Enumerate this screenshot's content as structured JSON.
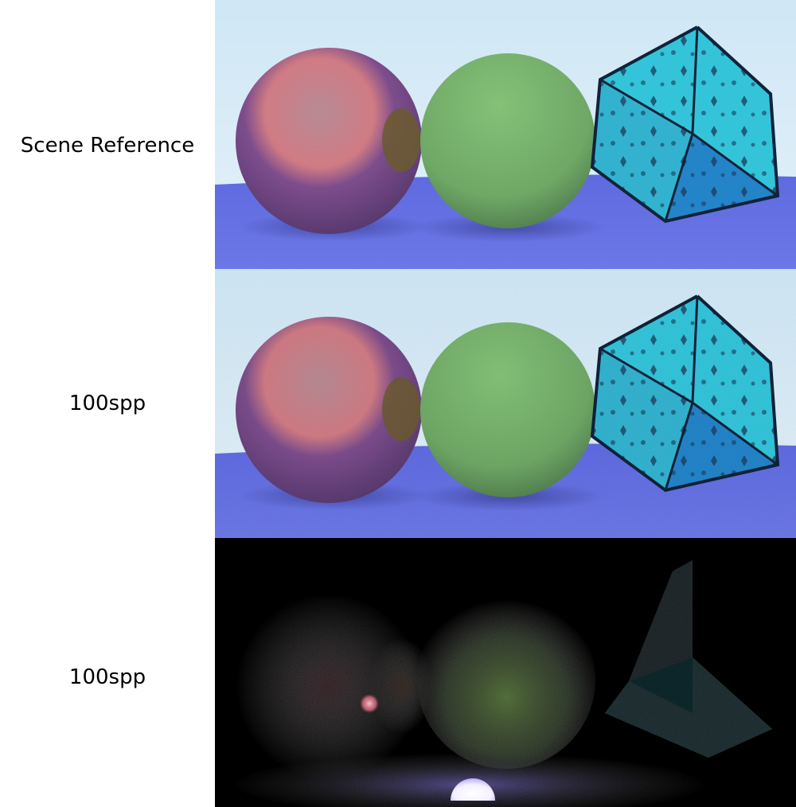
{
  "rows": [
    {
      "label": "Scene Reference",
      "render": "reference"
    },
    {
      "label": "100spp",
      "render": "noisy"
    },
    {
      "label": "100spp",
      "render": "direct-light"
    }
  ],
  "colors": {
    "sky": "#d4ebf7",
    "floor": "#6a74e2",
    "pink_sphere": "#c7797f",
    "green_sphere": "#7bb66e",
    "cube": "#2bb7d0",
    "background_dark": "#000000"
  }
}
